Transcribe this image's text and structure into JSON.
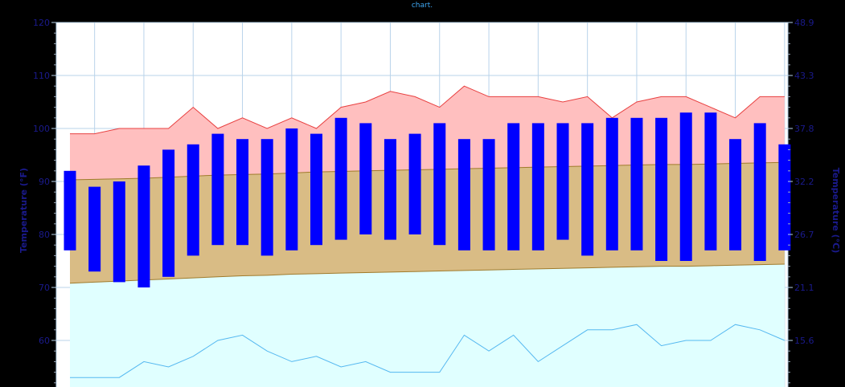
{
  "caption": "chart.",
  "chart_data": {
    "type": "bar",
    "left_axis": {
      "label": "Temperature (°F)",
      "ylim": [
        50,
        120
      ],
      "ticks": [
        "120",
        "110",
        "100",
        "90",
        "80",
        "70",
        "60"
      ],
      "tick_values": [
        120,
        110,
        100,
        90,
        80,
        70,
        60
      ]
    },
    "right_axis": {
      "label": "Temperature (°C)",
      "ticks": [
        "48.9",
        "43.3",
        "37.8",
        "32.2",
        "26.7",
        "21.1",
        "15.6"
      ]
    },
    "days": 30,
    "daily_range": {
      "low": [
        77,
        73,
        71,
        70,
        72,
        76,
        78,
        78,
        76,
        77,
        78,
        79,
        80,
        79,
        80,
        78,
        77,
        77,
        77,
        77,
        79,
        76,
        77,
        77,
        75,
        75,
        77,
        77,
        75,
        77
      ],
      "high": [
        92,
        89,
        90,
        93,
        96,
        97,
        99,
        98,
        98,
        100,
        99,
        102,
        101,
        98,
        99,
        101,
        98,
        98,
        101,
        101,
        101,
        101,
        102,
        102,
        102,
        103,
        103,
        98,
        101,
        97
      ]
    },
    "record_high": [
      99,
      99,
      100,
      100,
      100,
      104,
      100,
      102,
      100,
      102,
      100,
      104,
      105,
      107,
      106,
      104,
      108,
      106,
      106,
      106,
      105,
      106,
      102,
      105,
      106,
      106,
      104,
      102,
      106,
      106
    ],
    "record_low": [
      53,
      53,
      53,
      56,
      55,
      57,
      60,
      61,
      58,
      56,
      57,
      55,
      56,
      54,
      54,
      54,
      61,
      58,
      61,
      56,
      59,
      62,
      62,
      63,
      59,
      60,
      60,
      63,
      62,
      60
    ],
    "normal_high": [
      90.3,
      90.4,
      90.5,
      90.6,
      90.8,
      91.0,
      91.2,
      91.3,
      91.4,
      91.6,
      91.8,
      91.9,
      92.0,
      92.1,
      92.2,
      92.3,
      92.4,
      92.5,
      92.6,
      92.7,
      92.8,
      92.9,
      93.0,
      93.1,
      93.2,
      93.2,
      93.3,
      93.4,
      93.5,
      93.6
    ],
    "normal_low": [
      70.8,
      71.0,
      71.2,
      71.4,
      71.6,
      71.8,
      72.0,
      72.2,
      72.3,
      72.5,
      72.6,
      72.7,
      72.8,
      72.9,
      73.0,
      73.1,
      73.2,
      73.3,
      73.4,
      73.5,
      73.6,
      73.7,
      73.8,
      73.9,
      74.0,
      74.0,
      74.1,
      74.2,
      74.3,
      74.4
    ],
    "grid": true,
    "colors": {
      "background": "#ffffff",
      "grid": "#b9d3ea",
      "bars": "#0000ff",
      "record_high_fill": "#ffbfbf",
      "record_high_line": "#e84040",
      "normal_fill": "#d9bc85",
      "normal_line": "#a07b2c",
      "record_low_fill": "#e0ffff",
      "record_low_line": "#55b8f0",
      "axis_text": "#1a1a8c"
    }
  }
}
